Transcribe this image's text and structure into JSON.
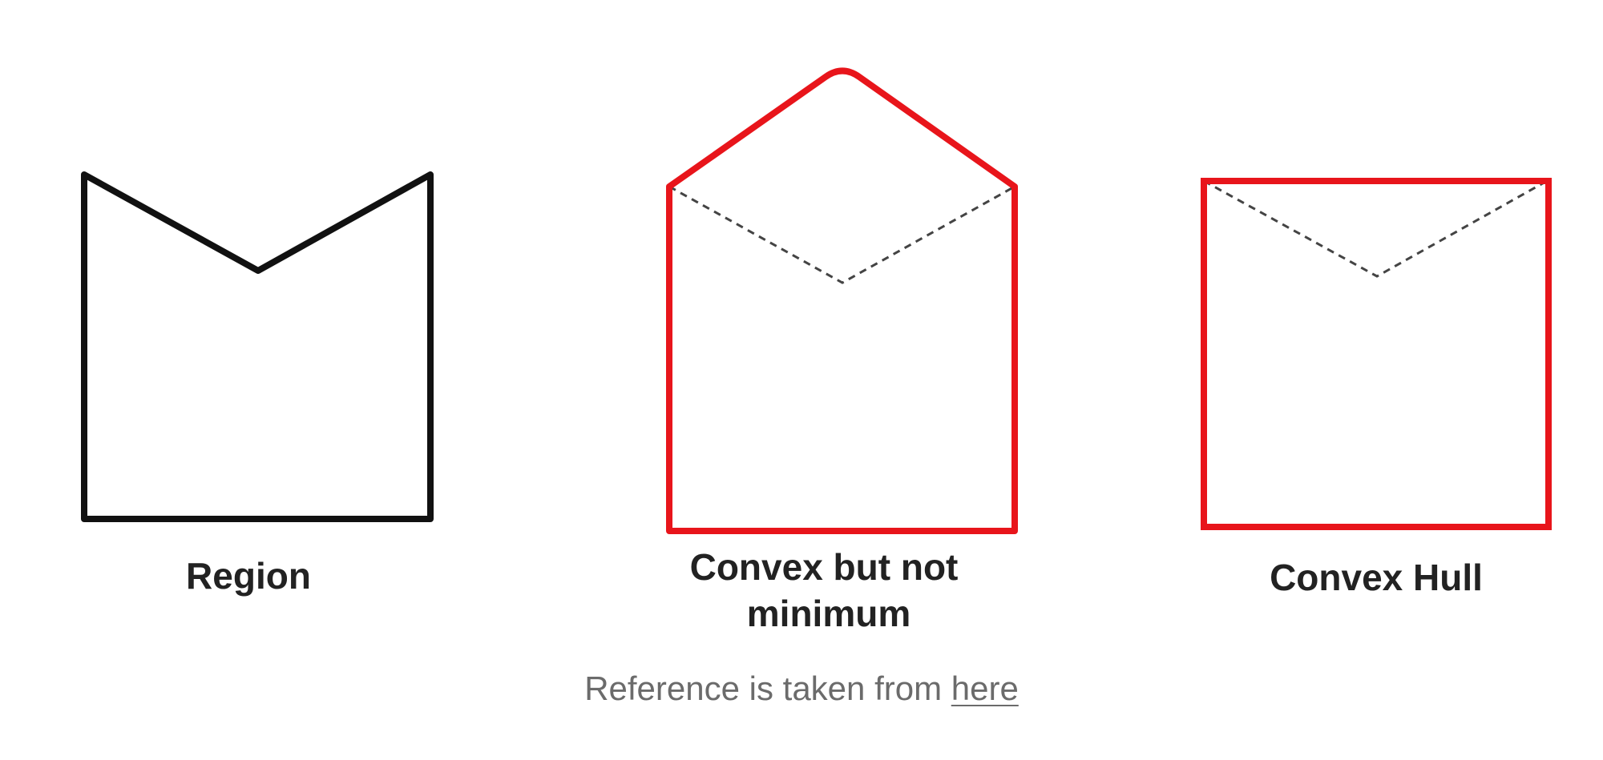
{
  "figure": {
    "panels": [
      {
        "label": "Region"
      },
      {
        "label_line1": "Convex but not",
        "label_line2": "minimum"
      },
      {
        "label": "Convex Hull"
      }
    ],
    "colors": {
      "region_outline": "#111111",
      "hull_outline": "#e8151b",
      "dashed_line": "#444444"
    }
  },
  "caption": {
    "text": "Reference is taken from ",
    "link_text": "here"
  }
}
